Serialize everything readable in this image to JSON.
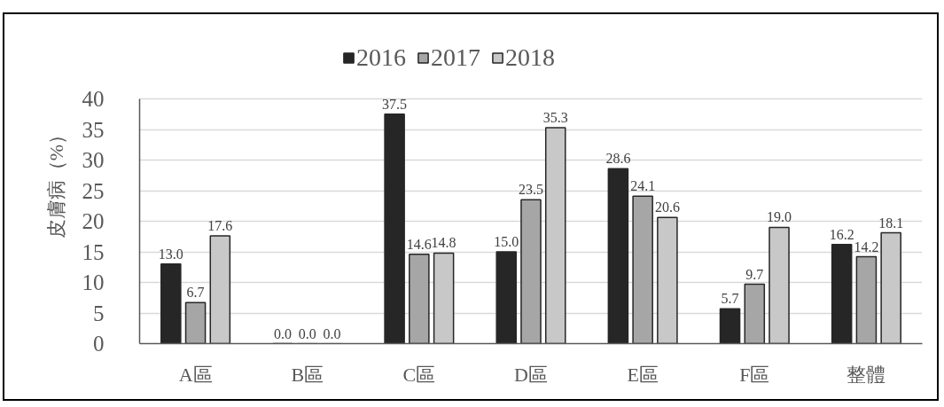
{
  "chart_data": {
    "type": "bar",
    "ylabel": "皮膚病（%）",
    "categories": [
      "A區",
      "B區",
      "C區",
      "D區",
      "E區",
      "F區",
      "整體"
    ],
    "series": [
      {
        "name": "2016",
        "color": "#262626",
        "values": [
          13.0,
          0.0,
          37.5,
          15.0,
          28.6,
          5.7,
          16.2
        ],
        "value_labels": [
          "13.0",
          "0.0",
          "37.5",
          "15.0",
          "28.6",
          "5.7",
          "16.2"
        ]
      },
      {
        "name": "2017",
        "color": "#a6a6a6",
        "values": [
          6.7,
          0.0,
          14.6,
          23.5,
          24.1,
          9.7,
          14.2
        ],
        "value_labels": [
          "6.7",
          "0.0",
          "14.6",
          "23.5",
          "24.1",
          "9.7",
          "14.2"
        ]
      },
      {
        "name": "2018",
        "color": "#c8c8c8",
        "values": [
          17.6,
          0.0,
          14.8,
          35.3,
          20.6,
          19.0,
          18.1
        ],
        "value_labels": [
          "17.6",
          "0.0",
          "14.8",
          "35.3",
          "20.6",
          "19.0",
          "18.1"
        ]
      }
    ],
    "ylim": [
      0,
      40
    ],
    "yticks": [
      0,
      5,
      10,
      15,
      20,
      25,
      30,
      35,
      40
    ],
    "grid": "y",
    "legend": "top"
  }
}
